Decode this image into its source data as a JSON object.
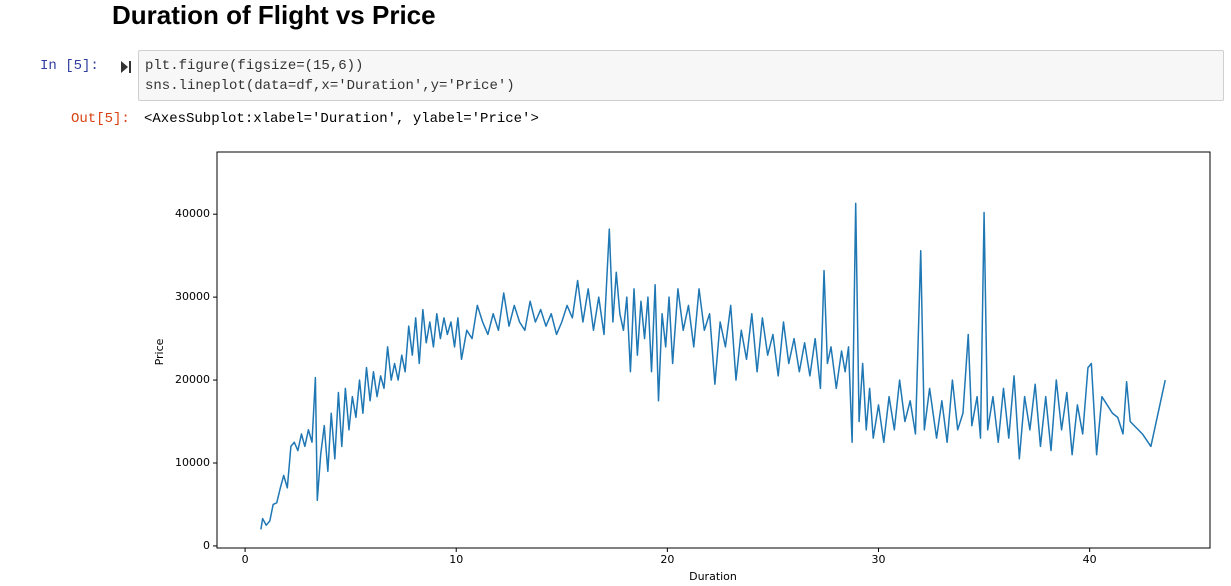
{
  "header": {
    "title": "Duration of Flight vs Price"
  },
  "cell": {
    "in_prompt": "In [5]:",
    "code": [
      "plt.figure(figsize=(15,6))",
      "sns.lineplot(data=df,x='Duration',y='Price')"
    ],
    "out_prompt": "Out[5]:",
    "output": "<AxesSubplot:xlabel='Duration', ylabel='Price'>"
  },
  "chart_data": {
    "type": "line",
    "xlabel": "Duration",
    "ylabel": "Price",
    "color": "#1f77b4",
    "xlim": [
      -1.33,
      45.7
    ],
    "ylim": [
      -250,
      47500
    ],
    "xticks": [
      0,
      10,
      20,
      30,
      40
    ],
    "yticks": [
      0,
      10000,
      20000,
      30000,
      40000
    ],
    "x": [
      0.75,
      0.83,
      1.0,
      1.17,
      1.33,
      1.5,
      1.67,
      1.83,
      2.0,
      2.17,
      2.33,
      2.5,
      2.67,
      2.83,
      3.0,
      3.17,
      3.33,
      3.42,
      3.58,
      3.75,
      3.92,
      4.08,
      4.25,
      4.42,
      4.58,
      4.75,
      4.92,
      5.08,
      5.25,
      5.42,
      5.58,
      5.75,
      5.92,
      6.08,
      6.25,
      6.42,
      6.58,
      6.75,
      6.92,
      7.08,
      7.25,
      7.42,
      7.58,
      7.75,
      7.92,
      8.08,
      8.25,
      8.42,
      8.58,
      8.75,
      8.92,
      9.08,
      9.25,
      9.42,
      9.58,
      9.75,
      9.92,
      10.08,
      10.25,
      10.5,
      10.75,
      11.0,
      11.25,
      11.5,
      11.75,
      12.0,
      12.25,
      12.5,
      12.75,
      13.0,
      13.25,
      13.5,
      13.75,
      14.0,
      14.25,
      14.5,
      14.75,
      15.0,
      15.25,
      15.5,
      15.75,
      16.0,
      16.25,
      16.5,
      16.75,
      17.0,
      17.25,
      17.42,
      17.58,
      17.75,
      17.92,
      18.08,
      18.25,
      18.42,
      18.58,
      18.75,
      18.92,
      19.08,
      19.25,
      19.42,
      19.58,
      19.75,
      19.92,
      20.08,
      20.25,
      20.5,
      20.75,
      21.0,
      21.25,
      21.5,
      21.75,
      22.0,
      22.25,
      22.5,
      22.75,
      23.0,
      23.25,
      23.5,
      23.75,
      24.0,
      24.25,
      24.5,
      24.75,
      25.0,
      25.25,
      25.5,
      25.75,
      26.0,
      26.25,
      26.5,
      26.75,
      27.0,
      27.25,
      27.42,
      27.58,
      27.75,
      28.0,
      28.25,
      28.42,
      28.58,
      28.75,
      28.92,
      29.08,
      29.25,
      29.42,
      29.58,
      29.75,
      30.0,
      30.25,
      30.5,
      30.75,
      31.0,
      31.25,
      31.5,
      31.75,
      32.0,
      32.17,
      32.42,
      32.75,
      33.0,
      33.25,
      33.5,
      33.75,
      34.0,
      34.25,
      34.42,
      34.67,
      34.83,
      35.0,
      35.17,
      35.42,
      35.67,
      35.92,
      36.17,
      36.42,
      36.67,
      36.92,
      37.17,
      37.42,
      37.67,
      37.92,
      38.17,
      38.42,
      38.67,
      38.92,
      39.17,
      39.42,
      39.67,
      39.92,
      40.08,
      40.33,
      40.58,
      40.83,
      41.08,
      41.33,
      41.58,
      41.75,
      41.92,
      42.5,
      42.9,
      43.58
    ],
    "values": [
      2000,
      3300,
      2500,
      3000,
      5000,
      5200,
      7000,
      8500,
      7000,
      12000,
      12500,
      11500,
      13500,
      12000,
      14000,
      12500,
      20300,
      5500,
      11000,
      14500,
      9000,
      16000,
      10500,
      18500,
      12000,
      19000,
      14000,
      18000,
      15500,
      20000,
      16000,
      21500,
      17500,
      21000,
      18000,
      20500,
      19000,
      24000,
      20000,
      22000,
      20000,
      23000,
      21000,
      26500,
      23000,
      27500,
      22000,
      28500,
      24500,
      27000,
      24000,
      28000,
      25000,
      27500,
      25500,
      27000,
      24000,
      27500,
      22500,
      26000,
      25000,
      29000,
      27000,
      25500,
      28000,
      26000,
      30500,
      26500,
      29000,
      27000,
      26000,
      29500,
      27000,
      28500,
      26500,
      28000,
      25500,
      27000,
      29000,
      27500,
      32000,
      27000,
      31000,
      26000,
      30000,
      25500,
      38200,
      27000,
      33000,
      28000,
      26000,
      30000,
      21000,
      31000,
      23000,
      29500,
      25000,
      30000,
      21000,
      31500,
      17500,
      28000,
      24000,
      30000,
      22000,
      31000,
      26000,
      29000,
      24000,
      31000,
      26000,
      28000,
      19500,
      27000,
      24000,
      29000,
      20000,
      26000,
      22500,
      28000,
      21000,
      27500,
      23000,
      25500,
      20500,
      27000,
      22000,
      25000,
      21000,
      24500,
      20500,
      25000,
      19000,
      33200,
      22000,
      24000,
      19000,
      23500,
      21000,
      24000,
      12500,
      41300,
      15000,
      22000,
      14000,
      19000,
      13000,
      17000,
      12500,
      18000,
      14000,
      20000,
      15000,
      17500,
      13500,
      35600,
      14000,
      19000,
      13000,
      17500,
      12500,
      20000,
      14000,
      16000,
      25500,
      14500,
      18000,
      13000,
      40200,
      14000,
      18000,
      12500,
      19000,
      13000,
      20500,
      10500,
      18000,
      14000,
      19500,
      12000,
      18000,
      11500,
      20000,
      14000,
      18500,
      11000,
      17000,
      13500,
      21500,
      22000,
      11000,
      18000,
      17000,
      16000,
      15500,
      13500,
      19800,
      15000,
      13500,
      12000,
      20000
    ]
  }
}
